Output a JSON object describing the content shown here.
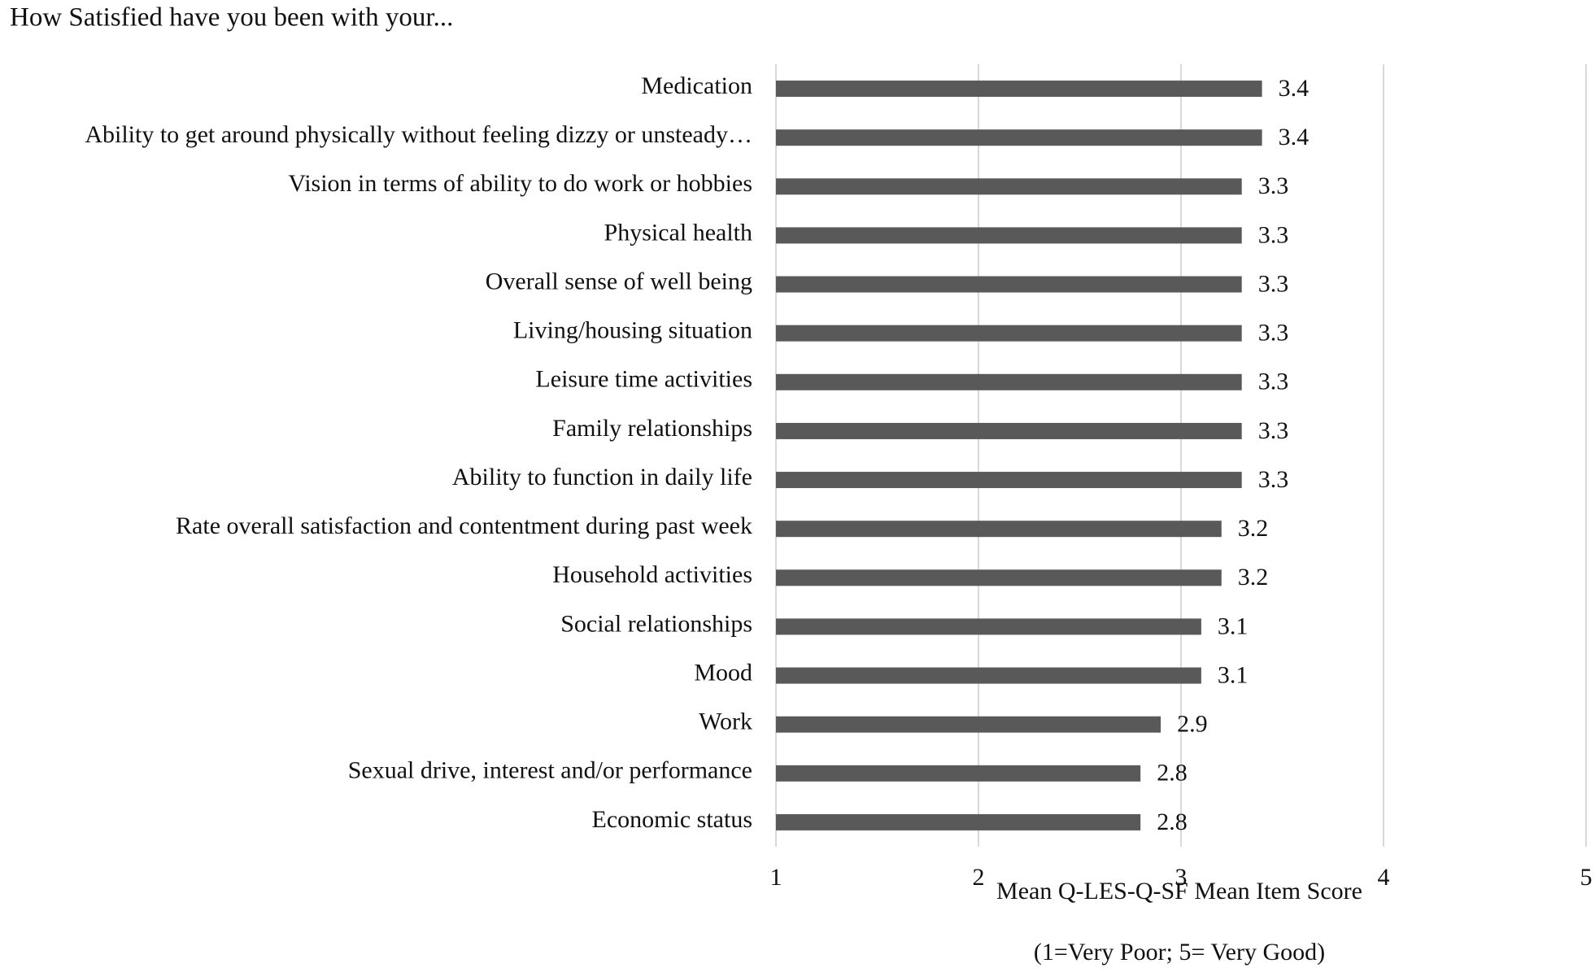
{
  "chart_data": {
    "type": "hbar",
    "title": "How Satisfied have you been with your...",
    "x_label": [
      "Mean Q-LES-Q-SF Mean Item Score",
      "(1=Very Poor; 5= Very Good)"
    ],
    "categories": [
      "Medication",
      "Ability to get around physically without feeling dizzy or unsteady…",
      "Vision in terms of ability to do work or hobbies",
      "Physical health",
      "Overall sense of well being",
      "Living/housing situation",
      "Leisure time activities",
      "Family relationships",
      "Ability to function in daily life",
      "Rate overall satisfaction and contentment during past week",
      "Household activities",
      "Social relationships",
      "Mood",
      "Work",
      "Sexual drive, interest and/or performance",
      "Economic status"
    ],
    "values": [
      3.4,
      3.4,
      3.3,
      3.3,
      3.3,
      3.3,
      3.3,
      3.3,
      3.3,
      3.2,
      3.2,
      3.1,
      3.1,
      2.9,
      2.8,
      2.8
    ],
    "color": "#595959",
    "xlim": [
      1,
      5
    ],
    "xticks": [
      1,
      2,
      3,
      4,
      5
    ],
    "grid": true
  }
}
